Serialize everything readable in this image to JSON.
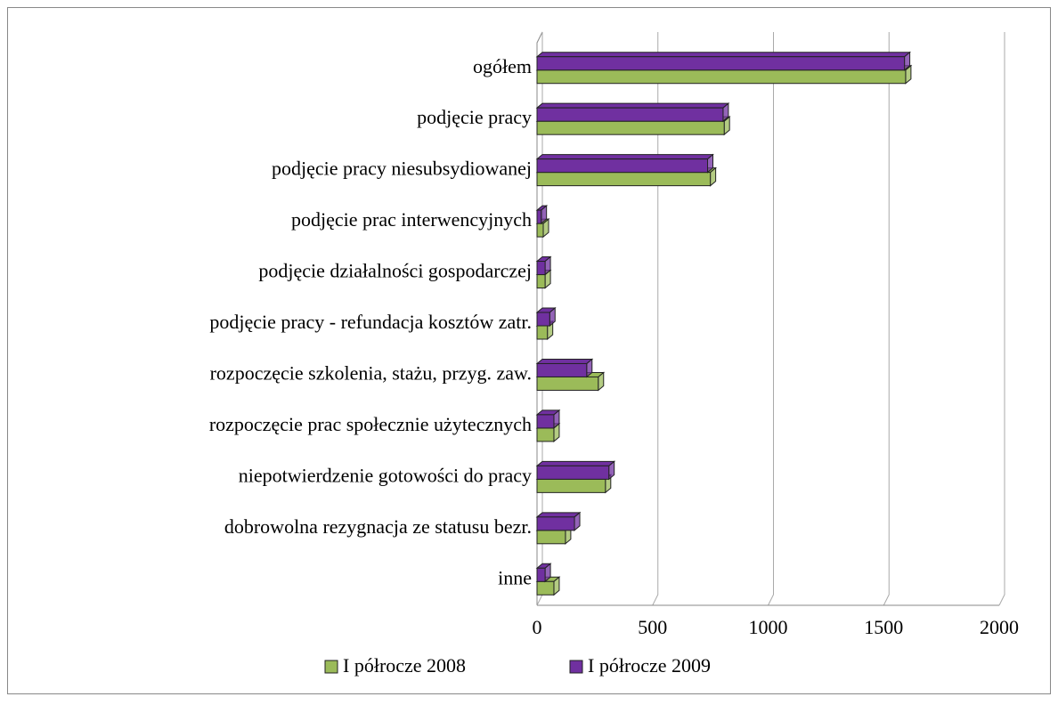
{
  "chart_data": {
    "type": "bar",
    "orientation": "horizontal",
    "categories": [
      "ogółem",
      "podjęcie pracy",
      "podjęcie pracy niesubsydiowanej",
      "podjęcie prac interwencyjnych",
      "podjęcie działalności gospodarczej",
      "podjęcie pracy - refundacja kosztów zatr.",
      "rozpoczęcie szkolenia, stażu, przyg. zaw.",
      "rozpoczęcie prac społecznie użytecznych",
      "niepotwierdzenie gotowości do pracy",
      "dobrowolna rezygnacja ze statusu bezr.",
      "inne"
    ],
    "series": [
      {
        "name": "I półrocze 2008",
        "color": "#9bbb59",
        "values": [
          1595,
          810,
          750,
          27,
          35,
          45,
          265,
          73,
          296,
          123,
          73
        ]
      },
      {
        "name": "I półrocze 2009",
        "color": "#7030a0",
        "values": [
          1590,
          805,
          738,
          18,
          35,
          55,
          215,
          73,
          311,
          162,
          35
        ]
      }
    ],
    "xlim": [
      0,
      2000
    ],
    "xticks": [
      0,
      500,
      1000,
      1500,
      2000
    ],
    "grid": true,
    "legend": "bottom"
  }
}
